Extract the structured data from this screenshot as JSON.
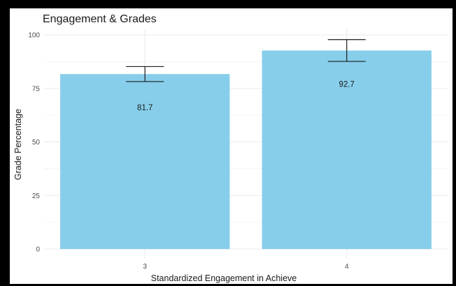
{
  "chart_data": {
    "type": "bar",
    "title": "Engagement & Grades",
    "xlabel": "Standardized Engagement in Achieve",
    "ylabel": "Grade Percentage",
    "categories": [
      "3",
      "4"
    ],
    "values": [
      81.7,
      92.7
    ],
    "data_labels": [
      "81.7",
      "92.7"
    ],
    "error_bars": [
      {
        "lower": 78.2,
        "upper": 85.2
      },
      {
        "lower": 87.6,
        "upper": 97.8
      }
    ],
    "ylim": [
      0,
      100
    ],
    "yticks": [
      0,
      25,
      50,
      75,
      100
    ],
    "ytick_labels": [
      "0",
      "25",
      "50",
      "75",
      "100"
    ],
    "grid": true,
    "legend": "none",
    "bar_color": "#87ceeb",
    "error_bar_color": "#1a1a1a",
    "grid_color": "#ebebeb"
  }
}
